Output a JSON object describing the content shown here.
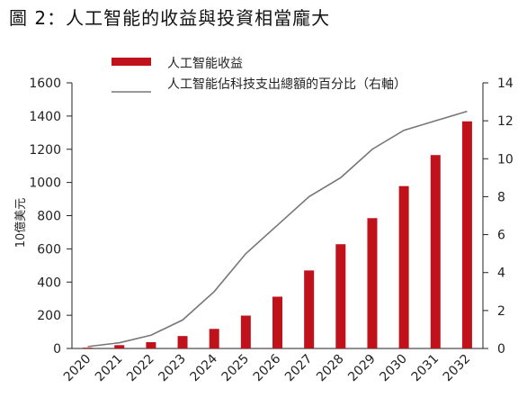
{
  "title": "圖 2：人工智能的收益與投資相當龐大",
  "colors": {
    "bar": "#c0121b",
    "line": "#777777",
    "axis": "#222222"
  },
  "chart_data": {
    "type": "bar",
    "title": "圖 2：人工智能的收益與投資相當龐大",
    "categories": [
      "2020",
      "2021",
      "2022",
      "2023",
      "2024",
      "2025",
      "2026",
      "2027",
      "2028",
      "2029",
      "2030",
      "2031",
      "2032"
    ],
    "series": [
      {
        "name": "人工智能收益",
        "type": "bar",
        "axis": "left",
        "values": [
          5,
          20,
          38,
          75,
          118,
          198,
          312,
          470,
          628,
          785,
          978,
          1165,
          1368
        ]
      },
      {
        "name": "人工智能佔科技支出總額的百分比（右軸）",
        "type": "line",
        "axis": "right",
        "values": [
          0.1,
          0.3,
          0.7,
          1.5,
          3.0,
          5.0,
          6.5,
          8.0,
          9.0,
          10.5,
          11.5,
          12.0,
          12.5
        ]
      }
    ],
    "ylabel": "10億美元",
    "ylim": [
      0,
      1600
    ],
    "yticks": [
      0,
      200,
      400,
      600,
      800,
      1000,
      1200,
      1400,
      1600
    ],
    "y2lim": [
      0,
      14
    ],
    "y2ticks": [
      0,
      2,
      4,
      6,
      8,
      10,
      12,
      14
    ],
    "grid": false,
    "legend": "top-center"
  }
}
